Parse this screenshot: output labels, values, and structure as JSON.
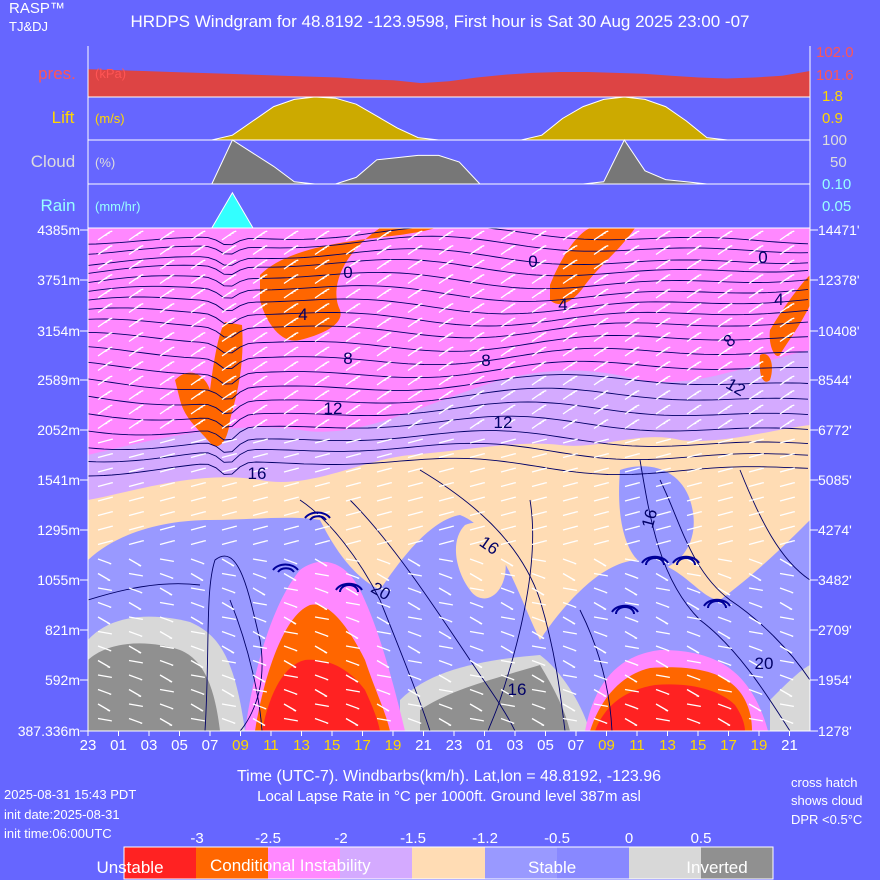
{
  "header": {
    "brand": "RASP™",
    "brand_sub": "TJ&DJ",
    "title": "HRDPS Windgram for 48.8192 -123.9598, First hour is Sat 30 Aug 2025 23:00 -07"
  },
  "panels": {
    "pres": {
      "label": "pres.",
      "unit": "(kPa)",
      "ticks": [
        "102.0",
        "101.6"
      ],
      "color": "#ff5555"
    },
    "lift": {
      "label": "Lift",
      "unit": "(m/s)",
      "ticks": [
        "1.8",
        "0.9"
      ],
      "color": "#ffd700"
    },
    "cloud": {
      "label": "Cloud",
      "unit": "(%)",
      "ticks": [
        "100",
        "50"
      ],
      "color": "#dddddd"
    },
    "rain": {
      "label": "Rain",
      "unit": "(mm/hr)",
      "ticks": [
        "0.10",
        "0.05"
      ],
      "color": "#99ffff"
    }
  },
  "chart_data": {
    "type": "heatmap",
    "title": "HRDPS Windgram for 48.8192 -123.9598, First hour is Sat 30 Aug 2025 23:00 -07",
    "xlabel": "Time (UTC-7). Windbarbs(km/h). Lat,lon = 48.8192, -123.96",
    "subtitle": "Local Lapse Rate in °C per 1000ft.   Ground level 387m asl",
    "x_ticks": [
      {
        "label": "23",
        "day": false
      },
      {
        "label": "01",
        "day": false
      },
      {
        "label": "03",
        "day": false
      },
      {
        "label": "05",
        "day": false
      },
      {
        "label": "07",
        "day": false
      },
      {
        "label": "09",
        "day": true
      },
      {
        "label": "11",
        "day": true
      },
      {
        "label": "13",
        "day": true
      },
      {
        "label": "15",
        "day": true
      },
      {
        "label": "17",
        "day": true
      },
      {
        "label": "19",
        "day": true
      },
      {
        "label": "21",
        "day": false
      },
      {
        "label": "23",
        "day": false
      },
      {
        "label": "01",
        "day": false
      },
      {
        "label": "03",
        "day": false
      },
      {
        "label": "05",
        "day": false
      },
      {
        "label": "07",
        "day": false
      },
      {
        "label": "09",
        "day": true
      },
      {
        "label": "11",
        "day": true
      },
      {
        "label": "13",
        "day": true
      },
      {
        "label": "15",
        "day": true
      },
      {
        "label": "17",
        "day": true
      },
      {
        "label": "19",
        "day": true
      },
      {
        "label": "21",
        "day": false
      }
    ],
    "y_left_ticks": [
      "4385m",
      "3751m",
      "3154m",
      "2589m",
      "2052m",
      "1541m",
      "1295m",
      "1055m",
      "821m",
      "592m",
      "387.336m"
    ],
    "y_right_ticks": [
      "14471'",
      "12378'",
      "10408'",
      "8544'",
      "6772'",
      "5085'",
      "4274'",
      "3482'",
      "2709'",
      "1954'",
      "1278'"
    ],
    "pressure_kpa": [
      101.75,
      101.74,
      101.73,
      101.72,
      101.71,
      101.7,
      101.69,
      101.68,
      101.67,
      101.66,
      101.64,
      101.63,
      101.6,
      101.62,
      101.66,
      101.69,
      101.71,
      101.72,
      101.72,
      101.71,
      101.7,
      101.68,
      101.66,
      101.65,
      101.66,
      101.68,
      101.73
    ],
    "lift_ms": [
      0,
      0,
      0,
      0,
      0,
      0,
      0,
      0.2,
      0.8,
      1.4,
      1.7,
      1.8,
      1.75,
      1.5,
      1.0,
      0.5,
      0.1,
      0,
      0,
      0,
      0,
      0,
      0.2,
      0.9,
      1.4,
      1.7,
      1.8,
      1.7,
      1.4,
      0.8,
      0.1,
      0,
      0,
      0,
      0,
      0
    ],
    "cloud_pct": [
      0,
      0,
      0,
      0,
      0,
      0,
      0,
      100,
      70,
      40,
      5,
      0,
      0,
      15,
      55,
      60,
      65,
      65,
      50,
      0,
      0,
      0,
      0,
      0,
      0,
      5,
      100,
      30,
      10,
      5,
      0,
      0,
      0,
      0,
      0,
      0
    ],
    "rain_mmhr": [
      0,
      0,
      0,
      0,
      0,
      0,
      0,
      0.08,
      0,
      0,
      0,
      0,
      0,
      0,
      0,
      0,
      0,
      0,
      0,
      0,
      0,
      0,
      0,
      0,
      0,
      0,
      0,
      0,
      0,
      0,
      0,
      0,
      0,
      0,
      0,
      0
    ],
    "contour_labels": [
      "0",
      "4",
      "8",
      "12",
      "16",
      "0",
      "8",
      "12",
      "16",
      "20",
      "0",
      "4",
      "8",
      "12",
      "16",
      "20",
      "4"
    ],
    "legend": {
      "values": [
        "-3",
        "-2.5",
        "-2",
        "-1.5",
        "-1.2",
        "-0.5",
        "0",
        "0.5"
      ],
      "colors": [
        "#ff2222",
        "#ff6600",
        "#ff88ff",
        "#d4aaff",
        "#ffdcb4",
        "#9999ff",
        "#8888ff",
        "#d8d8d8",
        "#909090"
      ],
      "categories": [
        "Unstable",
        "Conditional Instability",
        "Stable",
        "Inverted"
      ]
    }
  },
  "footer": {
    "timestamp": "2025-08-31 15:43 PDT",
    "init_date": "init date:2025-08-31",
    "init_time": "init time:06:00UTC",
    "note1": "cross hatch",
    "note2": "shows cloud",
    "note3": "DPR <0.5°C"
  }
}
